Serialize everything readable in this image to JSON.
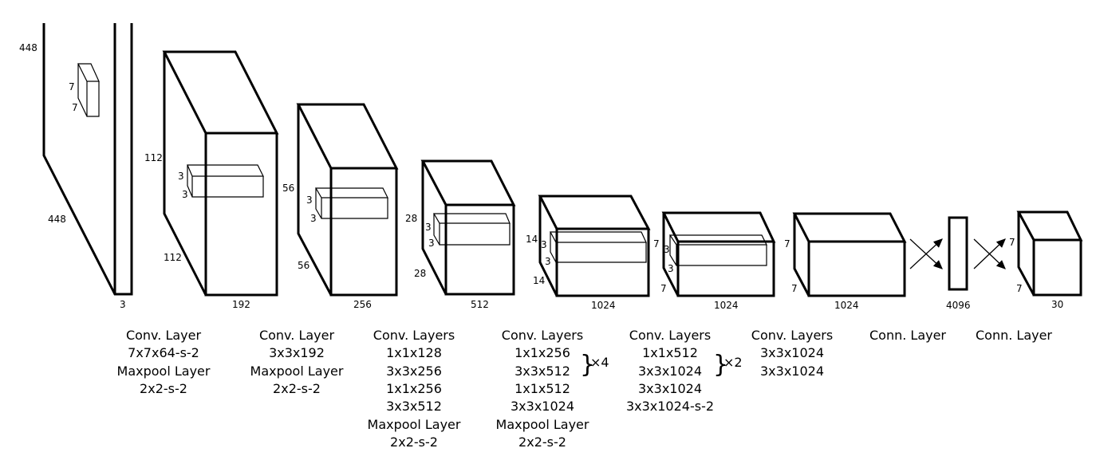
{
  "dims": {
    "input": {
      "h": "448",
      "w": "448",
      "c": "3",
      "k1": "7",
      "k2": "7"
    },
    "b2": {
      "h": "112",
      "w": "112",
      "c": "192",
      "k1": "3",
      "k2": "3"
    },
    "b3": {
      "h": "56",
      "w": "56",
      "c": "256",
      "k1": "3",
      "k2": "3"
    },
    "b4": {
      "h": "28",
      "w": "28",
      "c": "512",
      "k1": "3",
      "k2": "3"
    },
    "b5": {
      "h": "14",
      "w": "14",
      "c": "1024",
      "k1": "3",
      "k2": "3"
    },
    "b6": {
      "h": "7",
      "w": "7",
      "c": "1024",
      "k1": "3",
      "k2": "3"
    },
    "b7": {
      "h": "7",
      "w": "7",
      "c": "1024"
    },
    "fc": {
      "c": "4096"
    },
    "out": {
      "h": "7",
      "w": "7",
      "c": "30"
    }
  },
  "captions": [
    {
      "lines": [
        "Conv. Layer",
        "7x7x64-s-2",
        "Maxpool Layer",
        "2x2-s-2"
      ]
    },
    {
      "lines": [
        "Conv. Layer",
        "3x3x192",
        "Maxpool Layer",
        "2x2-s-2"
      ]
    },
    {
      "lines": [
        "Conv. Layers",
        "1x1x128",
        "3x3x256",
        "1x1x256",
        "3x3x512",
        "Maxpool Layer",
        "2x2-s-2"
      ]
    },
    {
      "lines": [
        "Conv. Layers",
        "1x1x256",
        "3x3x512",
        "1x1x512",
        "3x3x1024",
        "Maxpool Layer",
        "2x2-s-2"
      ],
      "repeat": "×4"
    },
    {
      "lines": [
        "Conv. Layers",
        "1x1x512",
        "3x3x1024",
        "3x3x1024",
        "3x3x1024-s-2"
      ],
      "repeat": "×2"
    },
    {
      "lines": [
        "Conv. Layers",
        "3x3x1024",
        "3x3x1024"
      ]
    },
    {
      "lines": [
        "Conn. Layer"
      ]
    },
    {
      "lines": [
        "Conn. Layer"
      ]
    }
  ]
}
